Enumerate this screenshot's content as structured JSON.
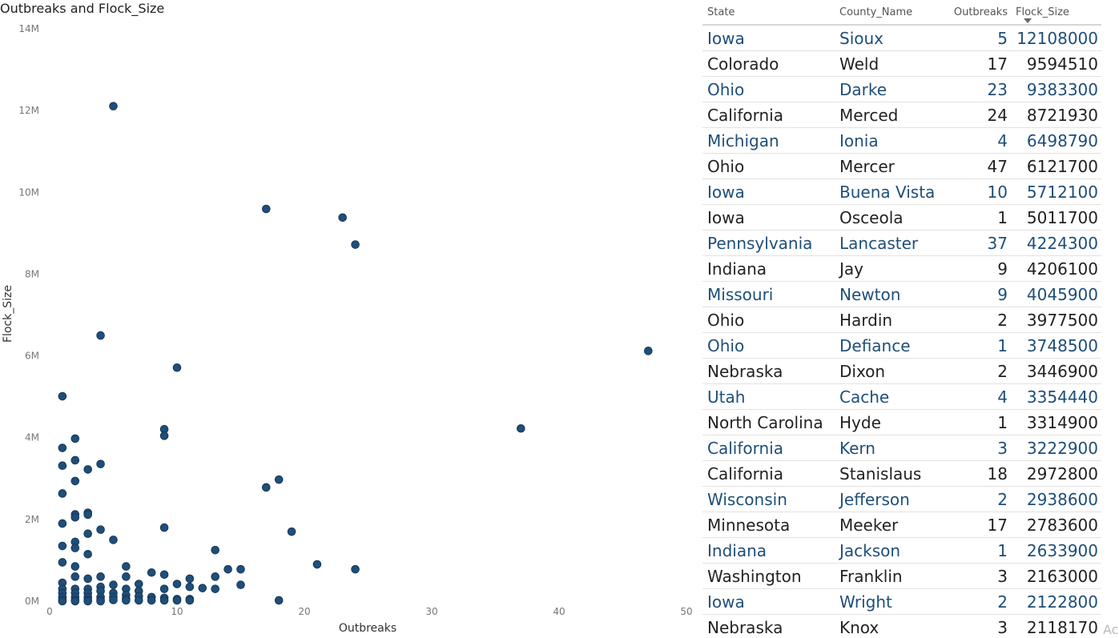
{
  "chart_data": {
    "type": "scatter",
    "title": "Outbreaks and Flock_Size",
    "xlabel": "Outbreaks",
    "ylabel": "Flock_Size",
    "xlim": [
      0,
      50
    ],
    "ylim": [
      0,
      14000000
    ],
    "x_ticks": [
      {
        "value": 0,
        "label": "0"
      },
      {
        "value": 10,
        "label": "10"
      },
      {
        "value": 20,
        "label": "20"
      },
      {
        "value": 30,
        "label": "30"
      },
      {
        "value": 40,
        "label": "40"
      },
      {
        "value": 50,
        "label": "50"
      }
    ],
    "y_ticks": [
      {
        "value": 0,
        "label": "0M"
      },
      {
        "value": 2000000,
        "label": "2M"
      },
      {
        "value": 4000000,
        "label": "4M"
      },
      {
        "value": 6000000,
        "label": "6M"
      },
      {
        "value": 8000000,
        "label": "8M"
      },
      {
        "value": 10000000,
        "label": "10M"
      },
      {
        "value": 12000000,
        "label": "12M"
      },
      {
        "value": 14000000,
        "label": "14M"
      }
    ],
    "grid": false,
    "point_color": "#1f4e79",
    "points": [
      [
        5,
        12108000
      ],
      [
        17,
        9594510
      ],
      [
        23,
        9383300
      ],
      [
        24,
        8721930
      ],
      [
        4,
        6498790
      ],
      [
        47,
        6121700
      ],
      [
        10,
        5712100
      ],
      [
        1,
        5011700
      ],
      [
        37,
        4224300
      ],
      [
        9,
        4206100
      ],
      [
        9,
        4045900
      ],
      [
        2,
        3977500
      ],
      [
        1,
        3748500
      ],
      [
        2,
        3446900
      ],
      [
        4,
        3354440
      ],
      [
        1,
        3314900
      ],
      [
        3,
        3222900
      ],
      [
        18,
        2972800
      ],
      [
        2,
        2938600
      ],
      [
        17,
        2783600
      ],
      [
        1,
        2633900
      ],
      [
        3,
        2163000
      ],
      [
        2,
        2122800
      ],
      [
        3,
        2118170
      ],
      [
        2,
        2050000
      ],
      [
        1,
        1900000
      ],
      [
        9,
        1800000
      ],
      [
        4,
        1750000
      ],
      [
        19,
        1700000
      ],
      [
        3,
        1650000
      ],
      [
        5,
        1500000
      ],
      [
        2,
        1450000
      ],
      [
        1,
        1350000
      ],
      [
        2,
        1300000
      ],
      [
        13,
        1250000
      ],
      [
        3,
        1150000
      ],
      [
        1,
        950000
      ],
      [
        21,
        900000
      ],
      [
        6,
        850000
      ],
      [
        2,
        850000
      ],
      [
        14,
        780000
      ],
      [
        15,
        780000
      ],
      [
        24,
        780000
      ],
      [
        8,
        700000
      ],
      [
        9,
        650000
      ],
      [
        4,
        600000
      ],
      [
        2,
        600000
      ],
      [
        6,
        600000
      ],
      [
        11,
        550000
      ],
      [
        13,
        600000
      ],
      [
        3,
        550000
      ],
      [
        1,
        450000
      ],
      [
        15,
        400000
      ],
      [
        10,
        420000
      ],
      [
        7,
        420000
      ],
      [
        5,
        400000
      ],
      [
        12,
        320000
      ],
      [
        11,
        350000
      ],
      [
        13,
        300000
      ],
      [
        9,
        300000
      ],
      [
        6,
        300000
      ],
      [
        4,
        350000
      ],
      [
        2,
        300000
      ],
      [
        3,
        300000
      ],
      [
        1,
        300000
      ],
      [
        1,
        200000
      ],
      [
        2,
        200000
      ],
      [
        3,
        200000
      ],
      [
        4,
        250000
      ],
      [
        5,
        200000
      ],
      [
        6,
        150000
      ],
      [
        7,
        250000
      ],
      [
        8,
        100000
      ],
      [
        9,
        80000
      ],
      [
        10,
        50000
      ],
      [
        11,
        50000
      ],
      [
        7,
        120000
      ],
      [
        1,
        100000
      ],
      [
        2,
        100000
      ],
      [
        3,
        100000
      ],
      [
        4,
        100000
      ],
      [
        5,
        100000
      ],
      [
        6,
        60000
      ],
      [
        1,
        30000
      ],
      [
        2,
        30000
      ],
      [
        3,
        30000
      ],
      [
        4,
        30000
      ],
      [
        5,
        30000
      ],
      [
        6,
        20000
      ],
      [
        7,
        20000
      ],
      [
        8,
        20000
      ],
      [
        9,
        20000
      ],
      [
        10,
        20000
      ],
      [
        11,
        20000
      ],
      [
        18,
        20000
      ],
      [
        1,
        0
      ],
      [
        2,
        0
      ],
      [
        3,
        0
      ],
      [
        4,
        0
      ]
    ]
  },
  "table": {
    "columns": [
      "State",
      "County_Name",
      "Outbreaks",
      "Flock_Size"
    ],
    "sort_icon": "sort-descending-icon",
    "rows": [
      [
        "Iowa",
        "Sioux",
        "5",
        "12108000"
      ],
      [
        "Colorado",
        "Weld",
        "17",
        "9594510"
      ],
      [
        "Ohio",
        "Darke",
        "23",
        "9383300"
      ],
      [
        "California",
        "Merced",
        "24",
        "8721930"
      ],
      [
        "Michigan",
        "Ionia",
        "4",
        "6498790"
      ],
      [
        "Ohio",
        "Mercer",
        "47",
        "6121700"
      ],
      [
        "Iowa",
        "Buena Vista",
        "10",
        "5712100"
      ],
      [
        "Iowa",
        "Osceola",
        "1",
        "5011700"
      ],
      [
        "Pennsylvania",
        "Lancaster",
        "37",
        "4224300"
      ],
      [
        "Indiana",
        "Jay",
        "9",
        "4206100"
      ],
      [
        "Missouri",
        "Newton",
        "9",
        "4045900"
      ],
      [
        "Ohio",
        "Hardin",
        "2",
        "3977500"
      ],
      [
        "Ohio",
        "Defiance",
        "1",
        "3748500"
      ],
      [
        "Nebraska",
        "Dixon",
        "2",
        "3446900"
      ],
      [
        "Utah",
        "Cache",
        "4",
        "3354440"
      ],
      [
        "North Carolina",
        "Hyde",
        "1",
        "3314900"
      ],
      [
        "California",
        "Kern",
        "3",
        "3222900"
      ],
      [
        "California",
        "Stanislaus",
        "18",
        "2972800"
      ],
      [
        "Wisconsin",
        "Jefferson",
        "2",
        "2938600"
      ],
      [
        "Minnesota",
        "Meeker",
        "17",
        "2783600"
      ],
      [
        "Indiana",
        "Jackson",
        "1",
        "2633900"
      ],
      [
        "Washington",
        "Franklin",
        "3",
        "2163000"
      ],
      [
        "Iowa",
        "Wright",
        "2",
        "2122800"
      ],
      [
        "Nebraska",
        "Knox",
        "3",
        "2118170"
      ]
    ]
  },
  "corner_text": "Ac"
}
